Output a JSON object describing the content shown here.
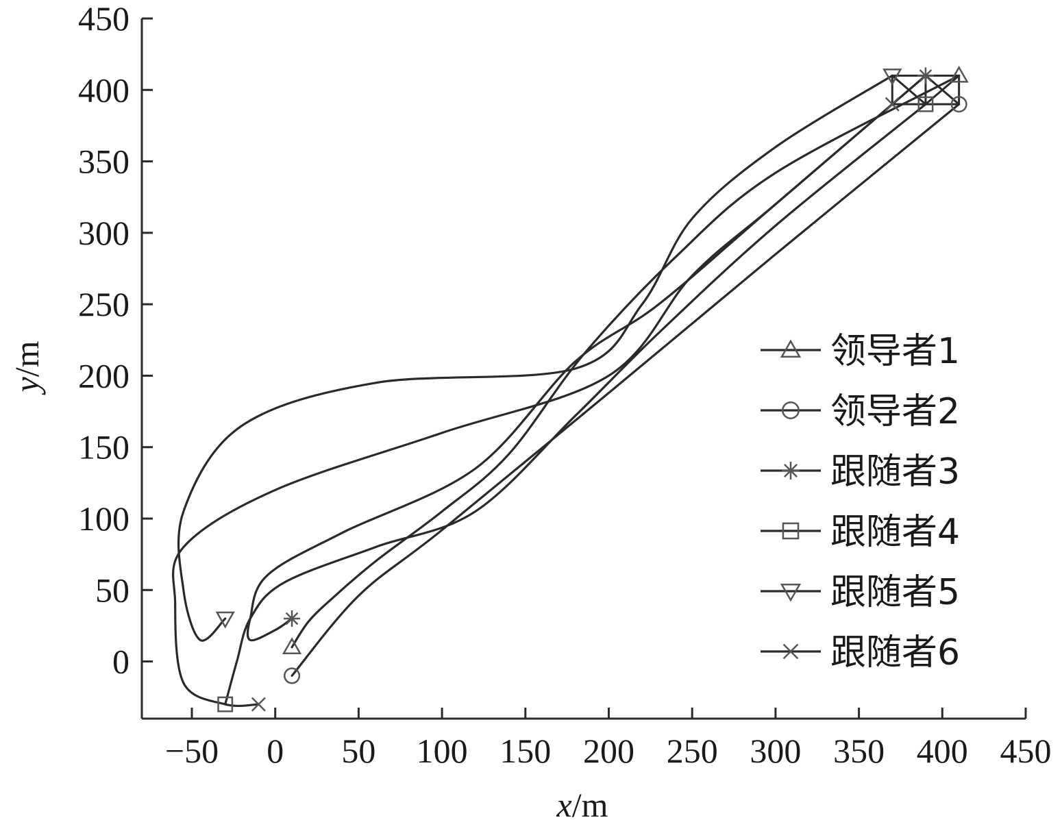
{
  "chart_data": {
    "type": "line",
    "xlabel_var": "x",
    "xlabel_unit": "/m",
    "ylabel_var": "y",
    "ylabel_unit": "/m",
    "xlim": [
      -80,
      450
    ],
    "ylim": [
      -40,
      450
    ],
    "xticks": [
      "−50",
      "0",
      "50",
      "100",
      "150",
      "200",
      "250",
      "300",
      "350",
      "400",
      "450"
    ],
    "xtick_values": [
      -50,
      0,
      50,
      100,
      150,
      200,
      250,
      300,
      350,
      400,
      450
    ],
    "yticks": [
      "0",
      "50",
      "100",
      "150",
      "200",
      "250",
      "300",
      "350",
      "400",
      "450"
    ],
    "ytick_values": [
      0,
      50,
      100,
      150,
      200,
      250,
      300,
      350,
      400,
      450
    ],
    "line_color": "#2a2a2a",
    "marker_color": "#555555",
    "legend_position": "right",
    "series": [
      {
        "name": "领导者1",
        "marker": "triangle-up",
        "points": [
          [
            410,
            410
          ],
          [
            300,
            342
          ],
          [
            240,
            283
          ],
          [
            185,
            215
          ],
          [
            140,
            145
          ],
          [
            100,
            105
          ],
          [
            60,
            70
          ],
          [
            35,
            45
          ],
          [
            20,
            28
          ],
          [
            10,
            10
          ]
        ]
      },
      {
        "name": "领导者2",
        "marker": "circle",
        "points": [
          [
            410,
            390
          ],
          [
            300,
            285
          ],
          [
            200,
            188
          ],
          [
            100,
            92
          ],
          [
            50,
            46
          ],
          [
            10,
            -10
          ]
        ]
      },
      {
        "name": "跟随者3",
        "marker": "star",
        "points": [
          [
            390,
            410
          ],
          [
            300,
            320
          ],
          [
            230,
            250
          ],
          [
            180,
            210
          ],
          [
            120,
            135
          ],
          [
            40,
            90
          ],
          [
            -5,
            60
          ],
          [
            -15,
            30
          ],
          [
            -15,
            15
          ],
          [
            0,
            22
          ],
          [
            10,
            30
          ]
        ]
      },
      {
        "name": "跟随者4",
        "marker": "square",
        "points": [
          [
            390,
            390
          ],
          [
            300,
            305
          ],
          [
            230,
            230
          ],
          [
            180,
            172
          ],
          [
            120,
            105
          ],
          [
            60,
            80
          ],
          [
            5,
            55
          ],
          [
            -15,
            30
          ],
          [
            -23,
            0
          ],
          [
            -30,
            -30
          ]
        ]
      },
      {
        "name": "跟随者5",
        "marker": "triangle-down",
        "points": [
          [
            370,
            410
          ],
          [
            300,
            360
          ],
          [
            250,
            310
          ],
          [
            220,
            250
          ],
          [
            180,
            205
          ],
          [
            60,
            195
          ],
          [
            -20,
            165
          ],
          [
            -55,
            105
          ],
          [
            -55,
            50
          ],
          [
            -45,
            15
          ],
          [
            -30,
            30
          ]
        ]
      },
      {
        "name": "跟随者6",
        "marker": "x",
        "points": [
          [
            370,
            390
          ],
          [
            300,
            320
          ],
          [
            250,
            270
          ],
          [
            200,
            200
          ],
          [
            100,
            160
          ],
          [
            0,
            120
          ],
          [
            -55,
            80
          ],
          [
            -60,
            40
          ],
          [
            -55,
            -15
          ],
          [
            -30,
            -30
          ],
          [
            -10,
            -30
          ]
        ]
      }
    ],
    "formation_box_x": [
      370,
      410
    ],
    "formation_box_y": [
      390,
      410
    ]
  }
}
